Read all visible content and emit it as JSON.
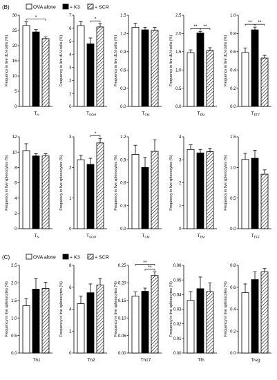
{
  "sections": [
    {
      "letter": "(B)",
      "legend": [
        {
          "label": "OVA alone",
          "style": "open"
        },
        {
          "label": "+ K3",
          "style": "solid"
        },
        {
          "label": "+ SCR",
          "style": "hatch"
        }
      ]
    },
    {
      "letter": "(C)",
      "legend": [
        {
          "label": "OVA alone",
          "style": "open"
        },
        {
          "label": "+ K3",
          "style": "solid"
        },
        {
          "label": "+ SCR",
          "style": "hatch"
        }
      ]
    }
  ],
  "colors": {
    "bar_fill_solid": "#000000",
    "bar_fill_open": "#ffffff",
    "axis": "#000000",
    "text": "#000000"
  },
  "chart_data": [
    {
      "type": "bar",
      "row": 0,
      "col": 0,
      "ylabel": "Frequency in live dLN cells (%)",
      "xlabel": "Tₙ",
      "xlabel_main": "T",
      "xlabel_sub": "N",
      "ylim": [
        0,
        30
      ],
      "yticks": [
        "0",
        "5",
        "10",
        "15",
        "20",
        "25",
        "30"
      ],
      "series": [
        {
          "name": "OVA alone",
          "values": [
            26.6
          ]
        },
        {
          "name": "+ K3",
          "values": [
            24.5
          ]
        },
        {
          "name": "+ SCR",
          "values": [
            22.3
          ]
        }
      ],
      "errors": [
        1.2,
        0.8,
        0.6
      ],
      "sig": [
        {
          "from": 0,
          "to": 2,
          "label": "*"
        }
      ]
    },
    {
      "type": "bar",
      "row": 0,
      "col": 1,
      "ylabel": "Frequency in live dLN cells (%)",
      "xlabel": "TSCM",
      "xlabel_main": "T",
      "xlabel_sub": "SCM",
      "ylim": [
        0,
        7
      ],
      "yticks": [
        "0",
        "1",
        "2",
        "3",
        "4",
        "5",
        "6",
        "7"
      ],
      "series": [
        {
          "name": "OVA alone",
          "values": [
            6.2
          ]
        },
        {
          "name": "+ K3",
          "values": [
            4.8
          ]
        },
        {
          "name": "+ SCR",
          "values": [
            6.1
          ]
        }
      ],
      "errors": [
        0.3,
        0.45,
        0.25
      ],
      "sig": [
        {
          "from": 1,
          "to": 2,
          "label": "*"
        }
      ]
    },
    {
      "type": "bar",
      "row": 0,
      "col": 2,
      "ylabel": "Frequency in live dLN cells (%)",
      "xlabel": "TCM",
      "xlabel_main": "T",
      "xlabel_sub": "CM",
      "ylim": [
        0,
        1.5
      ],
      "yticks": [
        "0.0",
        "0.3",
        "0.6",
        "0.9",
        "1.2",
        "1.5"
      ],
      "series": [
        {
          "name": "OVA alone",
          "values": [
            1.3
          ]
        },
        {
          "name": "+ K3",
          "values": [
            1.26
          ]
        },
        {
          "name": "+ SCR",
          "values": [
            1.25
          ]
        }
      ],
      "errors": [
        0.07,
        0.04,
        0.05
      ],
      "sig": []
    },
    {
      "type": "bar",
      "row": 0,
      "col": 3,
      "ylabel": "Frequency in live dLN cells (%)",
      "xlabel": "TEM",
      "xlabel_main": "T",
      "xlabel_sub": "EM",
      "ylim": [
        0,
        2.5
      ],
      "yticks": [
        "0.0",
        "0.5",
        "1.0",
        "1.5",
        "2.0",
        "2.5"
      ],
      "series": [
        {
          "name": "OVA alone",
          "values": [
            1.47
          ]
        },
        {
          "name": "+ K3",
          "values": [
            2.01
          ]
        },
        {
          "name": "+ SCR",
          "values": [
            1.53
          ]
        }
      ],
      "errors": [
        0.08,
        0.05,
        0.08
      ],
      "sig": [
        {
          "from": 0,
          "to": 1,
          "label": "**"
        },
        {
          "from": 1,
          "to": 2,
          "label": "**"
        }
      ]
    },
    {
      "type": "bar",
      "row": 0,
      "col": 4,
      "ylabel": "Frequency in live dLN cells (%)",
      "xlabel": "TEFF",
      "xlabel_main": "T",
      "xlabel_sub": "EFF",
      "ylim": [
        0,
        1.0
      ],
      "yticks": [
        "0.0",
        "0.2",
        "0.4",
        "0.6",
        "0.8",
        "1.0"
      ],
      "series": [
        {
          "name": "OVA alone",
          "values": [
            0.59
          ]
        },
        {
          "name": "+ K3",
          "values": [
            0.84
          ]
        },
        {
          "name": "+ SCR",
          "values": [
            0.53
          ]
        }
      ],
      "errors": [
        0.05,
        0.03,
        0.03
      ],
      "sig": [
        {
          "from": 0,
          "to": 1,
          "label": "**"
        },
        {
          "from": 1,
          "to": 2,
          "label": "**"
        }
      ]
    },
    {
      "type": "bar",
      "row": 1,
      "col": 0,
      "ylabel": "Frequency in live splenocytes (%)",
      "xlabel": "Tₙ",
      "xlabel_main": "T",
      "xlabel_sub": "N",
      "ylim": [
        0,
        12
      ],
      "yticks": [
        "0",
        "2",
        "4",
        "6",
        "8",
        "10",
        "12"
      ],
      "series": [
        {
          "name": "OVA alone",
          "values": [
            10.2
          ]
        },
        {
          "name": "+ K3",
          "values": [
            9.5
          ]
        },
        {
          "name": "+ SCR",
          "values": [
            9.5
          ]
        }
      ],
      "errors": [
        0.9,
        0.3,
        0.3
      ],
      "sig": []
    },
    {
      "type": "bar",
      "row": 1,
      "col": 1,
      "ylabel": "Frequency in live splenocytes (%)",
      "xlabel": "TSCM",
      "xlabel_main": "T",
      "xlabel_sub": "SCM",
      "ylim": [
        0,
        3
      ],
      "yticks": [
        "0",
        "1",
        "2",
        "3"
      ],
      "series": [
        {
          "name": "OVA alone",
          "values": [
            2.25
          ]
        },
        {
          "name": "+ K3",
          "values": [
            2.1
          ]
        },
        {
          "name": "+ SCR",
          "values": [
            2.8
          ]
        }
      ],
      "errors": [
        0.15,
        0.2,
        0.15
      ],
      "sig": [
        {
          "from": 1,
          "to": 2,
          "label": "*"
        }
      ]
    },
    {
      "type": "bar",
      "row": 1,
      "col": 2,
      "ylabel": "Frequency in live splenocytes (%)",
      "xlabel": "TCM",
      "xlabel_main": "T",
      "xlabel_sub": "CM",
      "ylim": [
        0,
        1.2
      ],
      "yticks": [
        "0.0",
        "0.3",
        "0.6",
        "0.9",
        "1.2"
      ],
      "series": [
        {
          "name": "OVA alone",
          "values": [
            0.97
          ]
        },
        {
          "name": "+ K3",
          "values": [
            0.8
          ]
        },
        {
          "name": "+ SCR",
          "values": [
            1.01
          ]
        }
      ],
      "errors": [
        0.12,
        0.13,
        0.15
      ],
      "sig": []
    },
    {
      "type": "bar",
      "row": 1,
      "col": 3,
      "ylabel": "Frequency in live splenocytes (%)",
      "xlabel": "TEM",
      "xlabel_main": "T",
      "xlabel_sub": "EM",
      "ylim": [
        0,
        4
      ],
      "yticks": [
        "0",
        "1",
        "2",
        "3",
        "4"
      ],
      "series": [
        {
          "name": "OVA alone",
          "values": [
            3.45
          ]
        },
        {
          "name": "+ K3",
          "values": [
            3.3
          ]
        },
        {
          "name": "+ SCR",
          "values": [
            3.35
          ]
        }
      ],
      "errors": [
        0.2,
        0.15,
        0.15
      ],
      "sig": []
    },
    {
      "type": "bar",
      "row": 1,
      "col": 4,
      "ylabel": "Frequency in live splenocytes (%)",
      "xlabel": "TEFF",
      "xlabel_main": "T",
      "xlabel_sub": "EFF",
      "ylim": [
        0,
        1.5
      ],
      "yticks": [
        "0.0",
        "0.5",
        "1.0",
        "1.5"
      ],
      "series": [
        {
          "name": "OVA alone",
          "values": [
            1.13
          ]
        },
        {
          "name": "+ K3",
          "values": [
            1.15
          ]
        },
        {
          "name": "+ SCR",
          "values": [
            0.89
          ]
        }
      ],
      "errors": [
        0.1,
        0.13,
        0.07
      ],
      "sig": []
    },
    {
      "type": "bar",
      "row": 2,
      "col": 0,
      "ylabel": "Frequency in live splenocytes (%)",
      "xlabel": "Th1",
      "xlabel_main": "Th1",
      "xlabel_sub": "",
      "ylim": [
        0,
        2.5
      ],
      "yticks": [
        "0.0",
        "0.5",
        "1.0",
        "1.5",
        "2.0",
        "2.5"
      ],
      "series": [
        {
          "name": "OVA alone",
          "values": [
            1.35
          ]
        },
        {
          "name": "+ K3",
          "values": [
            1.82
          ]
        },
        {
          "name": "+ SCR",
          "values": [
            1.84
          ]
        }
      ],
      "errors": [
        0.2,
        0.3,
        0.18
      ],
      "sig": []
    },
    {
      "type": "bar",
      "row": 2,
      "col": 1,
      "ylabel": "Frequency in live splenocytes (%)",
      "xlabel": "Th2",
      "xlabel_main": "Th2",
      "xlabel_sub": "",
      "ylim": [
        0,
        8
      ],
      "yticks": [
        "0",
        "2",
        "4",
        "6",
        "8"
      ],
      "series": [
        {
          "name": "OVA alone",
          "values": [
            4.5
          ]
        },
        {
          "name": "+ K3",
          "values": [
            5.5
          ]
        },
        {
          "name": "+ SCR",
          "values": [
            6.2
          ]
        }
      ],
      "errors": [
        0.7,
        0.8,
        0.6
      ],
      "sig": []
    },
    {
      "type": "bar",
      "row": 2,
      "col": 2,
      "ylabel": "Frequency in live splenocytes (%)",
      "xlabel": "Th17",
      "xlabel_main": "Th17",
      "xlabel_sub": "",
      "ylim": [
        0,
        0.25
      ],
      "yticks": [
        "0.00",
        "0.05",
        "0.10",
        "0.15",
        "0.20",
        "0.25"
      ],
      "series": [
        {
          "name": "OVA alone",
          "values": [
            0.162
          ]
        },
        {
          "name": "+ K3",
          "values": [
            0.176
          ]
        },
        {
          "name": "+ SCR",
          "values": [
            0.221
          ]
        }
      ],
      "errors": [
        0.012,
        0.009,
        0.01
      ],
      "sig": [
        {
          "from": 0,
          "to": 2,
          "label": "**"
        },
        {
          "from": 1,
          "to": 2,
          "label": "**"
        }
      ]
    },
    {
      "type": "bar",
      "row": 2,
      "col": 3,
      "ylabel": "Frequency in live splenocytes (%)",
      "xlabel": "Tfh",
      "xlabel_main": "Tfh",
      "xlabel_sub": "",
      "ylim": [
        0,
        0.06
      ],
      "yticks": [
        "0.00",
        "0.01",
        "0.02",
        "0.03",
        "0.04",
        "0.05",
        "0.06"
      ],
      "series": [
        {
          "name": "OVA alone",
          "values": [
            0.036
          ]
        },
        {
          "name": "+ K3",
          "values": [
            0.044
          ]
        },
        {
          "name": "+ SCR",
          "values": [
            0.042
          ]
        }
      ],
      "errors": [
        0.006,
        0.008,
        0.006
      ],
      "sig": []
    },
    {
      "type": "bar",
      "row": 2,
      "col": 4,
      "ylabel": "Frequency in live splenocytes (%)",
      "xlabel": "Treg",
      "xlabel_main": "Treg",
      "xlabel_sub": "",
      "ylim": [
        0,
        0.8
      ],
      "yticks": [
        "0.0",
        "0.2",
        "0.4",
        "0.6",
        "0.8"
      ],
      "series": [
        {
          "name": "OVA alone",
          "values": [
            0.55
          ]
        },
        {
          "name": "+ K3",
          "values": [
            0.67
          ]
        },
        {
          "name": "+ SCR",
          "values": [
            0.74
          ]
        }
      ],
      "errors": [
        0.08,
        0.07,
        0.03
      ],
      "sig": []
    }
  ]
}
